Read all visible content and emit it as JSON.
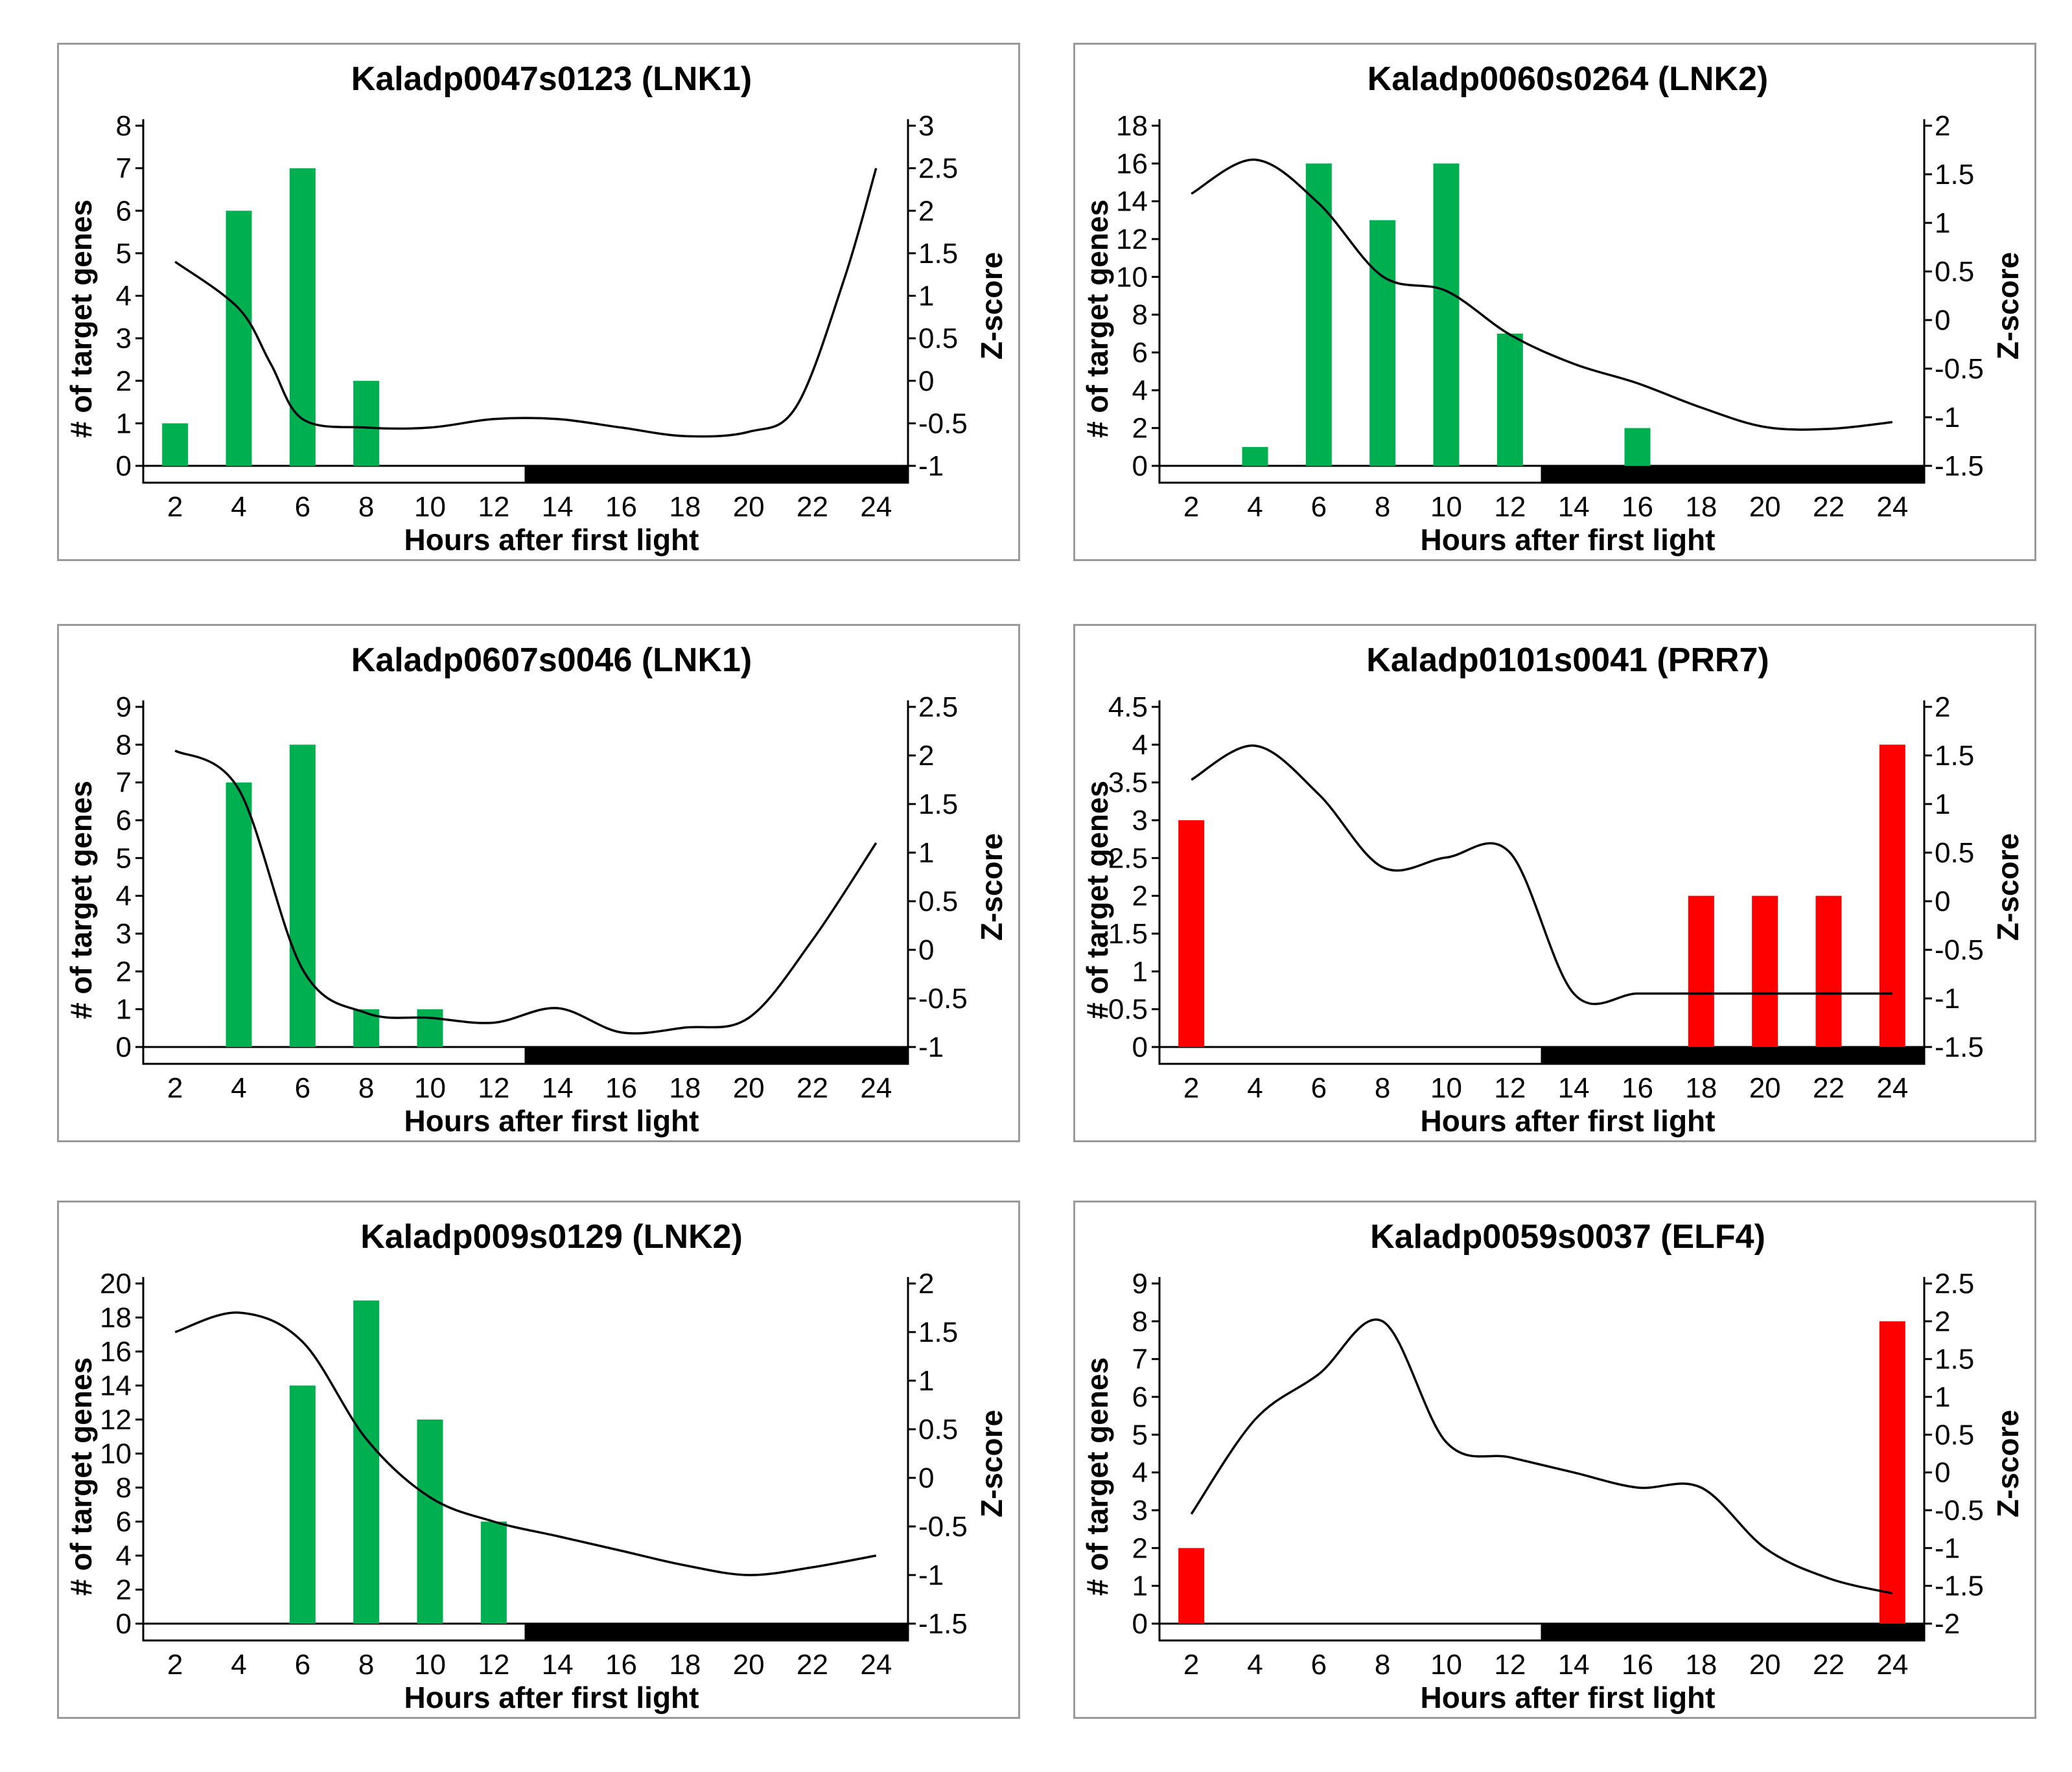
{
  "colors": {
    "green": "#00b050",
    "red": "#ff0000",
    "dark": "#000000",
    "light": "#ffffff"
  },
  "chart_data": [
    {
      "type": "bar",
      "title": "Kaladp0047s0123 (LNK1)",
      "xlabel": "Hours after first light",
      "ylabel": "# of target genes",
      "y2label": "Z-score",
      "x": [
        2,
        4,
        6,
        8,
        10,
        12,
        14,
        16,
        18,
        20,
        22,
        24
      ],
      "ylim": [
        0,
        8
      ],
      "yticks": [
        "0",
        "1",
        "2",
        "3",
        "4",
        "5",
        "6",
        "7",
        "8"
      ],
      "y2lim": [
        -1,
        3
      ],
      "y2ticks": [
        "-1",
        "-0.5",
        "0",
        "0.5",
        "1",
        "1.5",
        "2",
        "2.5",
        "3"
      ],
      "bar_color": "green",
      "bars": [
        {
          "x": 2,
          "value": 1
        },
        {
          "x": 4,
          "value": 6
        },
        {
          "x": 6,
          "value": 7
        },
        {
          "x": 8,
          "value": 2
        }
      ],
      "zscore": [
        [
          2,
          1.4
        ],
        [
          4,
          0.85
        ],
        [
          5,
          0.2
        ],
        [
          6,
          -0.45
        ],
        [
          8,
          -0.55
        ],
        [
          10,
          -0.55
        ],
        [
          12,
          -0.45
        ],
        [
          14,
          -0.45
        ],
        [
          16,
          -0.55
        ],
        [
          18,
          -0.65
        ],
        [
          20,
          -0.6
        ],
        [
          21.5,
          -0.3
        ],
        [
          23,
          1.2
        ],
        [
          24,
          2.5
        ]
      ],
      "light_period": [
        1,
        13
      ],
      "dark_period": [
        13,
        25
      ]
    },
    {
      "type": "bar",
      "title": "Kaladp0060s0264 (LNK2)",
      "xlabel": "Hours after first light",
      "ylabel": "# of target genes",
      "y2label": "Z-score",
      "x": [
        2,
        4,
        6,
        8,
        10,
        12,
        14,
        16,
        18,
        20,
        22,
        24
      ],
      "ylim": [
        0,
        18
      ],
      "yticks": [
        "0",
        "2",
        "4",
        "6",
        "8",
        "10",
        "12",
        "14",
        "16",
        "18"
      ],
      "y2lim": [
        -1.5,
        2
      ],
      "y2ticks": [
        "-1.5",
        "-1",
        "-0.5",
        "0",
        "0.5",
        "1",
        "1.5",
        "2"
      ],
      "bar_color": "green",
      "bars": [
        {
          "x": 4,
          "value": 1
        },
        {
          "x": 6,
          "value": 16
        },
        {
          "x": 8,
          "value": 13
        },
        {
          "x": 10,
          "value": 16
        },
        {
          "x": 12,
          "value": 7
        },
        {
          "x": 16,
          "value": 2
        }
      ],
      "zscore": [
        [
          2,
          1.3
        ],
        [
          4,
          1.65
        ],
        [
          6,
          1.2
        ],
        [
          8,
          0.45
        ],
        [
          10,
          0.3
        ],
        [
          12,
          -0.15
        ],
        [
          14,
          -0.45
        ],
        [
          16,
          -0.65
        ],
        [
          18,
          -0.9
        ],
        [
          20,
          -1.1
        ],
        [
          22,
          -1.12
        ],
        [
          24,
          -1.05
        ]
      ],
      "light_period": [
        1,
        13
      ],
      "dark_period": [
        13,
        25
      ]
    },
    {
      "type": "bar",
      "title": "Kaladp0607s0046 (LNK1)",
      "xlabel": "Hours after first light",
      "ylabel": "# of target genes",
      "y2label": "Z-score",
      "x": [
        2,
        4,
        6,
        8,
        10,
        12,
        14,
        16,
        18,
        20,
        22,
        24
      ],
      "ylim": [
        0,
        9
      ],
      "yticks": [
        "0",
        "1",
        "2",
        "3",
        "4",
        "5",
        "6",
        "7",
        "8",
        "9"
      ],
      "y2lim": [
        -1,
        2.5
      ],
      "y2ticks": [
        "-1",
        "-0.5",
        "0",
        "0.5",
        "1",
        "1.5",
        "2",
        "2.5"
      ],
      "bar_color": "green",
      "bars": [
        {
          "x": 4,
          "value": 7
        },
        {
          "x": 6,
          "value": 8
        },
        {
          "x": 8,
          "value": 1
        },
        {
          "x": 10,
          "value": 1
        }
      ],
      "zscore": [
        [
          2,
          2.05
        ],
        [
          4,
          1.65
        ],
        [
          6,
          -0.2
        ],
        [
          8,
          -0.65
        ],
        [
          10,
          -0.7
        ],
        [
          12,
          -0.75
        ],
        [
          14,
          -0.6
        ],
        [
          16,
          -0.85
        ],
        [
          18,
          -0.8
        ],
        [
          20,
          -0.7
        ],
        [
          22,
          0.1
        ],
        [
          24,
          1.1
        ]
      ],
      "light_period": [
        1,
        13
      ],
      "dark_period": [
        13,
        25
      ]
    },
    {
      "type": "bar",
      "title": "Kaladp0101s0041 (PRR7)",
      "xlabel": "Hours after first light",
      "ylabel": "# of target genes",
      "y2label": "Z-score",
      "x": [
        2,
        4,
        6,
        8,
        10,
        12,
        14,
        16,
        18,
        20,
        22,
        24
      ],
      "ylim": [
        0,
        4.5
      ],
      "yticks": [
        "0",
        "0.5",
        "1",
        "1.5",
        "2",
        "2.5",
        "3",
        "3.5",
        "4",
        "4.5"
      ],
      "y2lim": [
        -1.5,
        2
      ],
      "y2ticks": [
        "-1.5",
        "-1",
        "-0.5",
        "0",
        "0.5",
        "1",
        "1.5",
        "2"
      ],
      "bar_color": "red",
      "bars": [
        {
          "x": 2,
          "value": 3
        },
        {
          "x": 18,
          "value": 2
        },
        {
          "x": 20,
          "value": 2
        },
        {
          "x": 22,
          "value": 2
        },
        {
          "x": 24,
          "value": 4
        }
      ],
      "zscore": [
        [
          2,
          1.25
        ],
        [
          4,
          1.6
        ],
        [
          6,
          1.1
        ],
        [
          8,
          0.35
        ],
        [
          10,
          0.45
        ],
        [
          12,
          0.5
        ],
        [
          14,
          -0.95
        ],
        [
          16,
          -0.95
        ],
        [
          18,
          -0.95
        ],
        [
          20,
          -0.95
        ],
        [
          22,
          -0.95
        ],
        [
          24,
          -0.95
        ]
      ],
      "light_period": [
        1,
        13
      ],
      "dark_period": [
        13,
        25
      ]
    },
    {
      "type": "bar",
      "title": "Kaladp009s0129 (LNK2)",
      "xlabel": "Hours after first light",
      "ylabel": "# of target genes",
      "y2label": "Z-score",
      "x": [
        2,
        4,
        6,
        8,
        10,
        12,
        14,
        16,
        18,
        20,
        22,
        24
      ],
      "ylim": [
        0,
        20
      ],
      "yticks": [
        "0",
        "2",
        "4",
        "6",
        "8",
        "10",
        "12",
        "14",
        "16",
        "18",
        "20"
      ],
      "y2lim": [
        -1.5,
        2
      ],
      "y2ticks": [
        "-1.5",
        "-1",
        "-0.5",
        "0",
        "0.5",
        "1",
        "1.5",
        "2"
      ],
      "bar_color": "green",
      "bars": [
        {
          "x": 6,
          "value": 14
        },
        {
          "x": 8,
          "value": 19
        },
        {
          "x": 10,
          "value": 12
        },
        {
          "x": 12,
          "value": 6
        }
      ],
      "zscore": [
        [
          2,
          1.5
        ],
        [
          4,
          1.7
        ],
        [
          6,
          1.4
        ],
        [
          8,
          0.4
        ],
        [
          10,
          -0.2
        ],
        [
          12,
          -0.45
        ],
        [
          14,
          -0.6
        ],
        [
          16,
          -0.75
        ],
        [
          18,
          -0.9
        ],
        [
          20,
          -1.0
        ],
        [
          22,
          -0.92
        ],
        [
          24,
          -0.8
        ]
      ],
      "light_period": [
        1,
        13
      ],
      "dark_period": [
        13,
        25
      ]
    },
    {
      "type": "bar",
      "title": "Kaladp0059s0037 (ELF4)",
      "xlabel": "Hours after first light",
      "ylabel": "# of target genes",
      "y2label": "Z-score",
      "x": [
        2,
        4,
        6,
        8,
        10,
        12,
        14,
        16,
        18,
        20,
        22,
        24
      ],
      "ylim": [
        0,
        9
      ],
      "yticks": [
        "0",
        "1",
        "2",
        "3",
        "4",
        "5",
        "6",
        "7",
        "8",
        "9"
      ],
      "y2lim": [
        -2,
        2.5
      ],
      "y2ticks": [
        "-2",
        "-1.5",
        "-1",
        "-0.5",
        "0",
        "0.5",
        "1",
        "1.5",
        "2",
        "2.5"
      ],
      "bar_color": "red",
      "bars": [
        {
          "x": 2,
          "value": 2
        },
        {
          "x": 24,
          "value": 8
        }
      ],
      "zscore": [
        [
          2,
          -0.55
        ],
        [
          4,
          0.7
        ],
        [
          6,
          1.3
        ],
        [
          8,
          2.0
        ],
        [
          10,
          0.4
        ],
        [
          12,
          0.2
        ],
        [
          14,
          0.0
        ],
        [
          16,
          -0.2
        ],
        [
          18,
          -0.2
        ],
        [
          20,
          -1.0
        ],
        [
          22,
          -1.4
        ],
        [
          24,
          -1.6
        ]
      ],
      "light_period": [
        1,
        13
      ],
      "dark_period": [
        13,
        25
      ]
    }
  ]
}
